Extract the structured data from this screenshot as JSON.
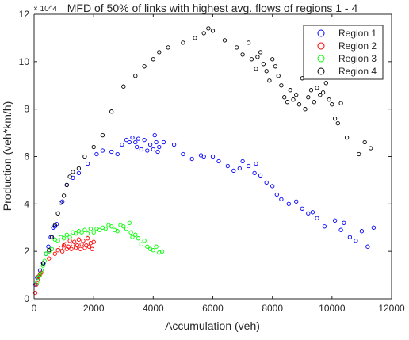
{
  "chart_data": {
    "type": "scatter",
    "title": "MFD of 50% of links with highest avg. flows of regions 1 - 4",
    "xlabel": "Accumulation (veh)",
    "ylabel": "Production (veh*km/h)",
    "y_exponent_label": "× 10^4",
    "xlim": [
      0,
      12000
    ],
    "ylim": [
      0,
      120000
    ],
    "x_ticks": [
      0,
      2000,
      4000,
      6000,
      8000,
      10000,
      12000
    ],
    "x_tick_labels": [
      "0",
      "2000",
      "4000",
      "6000",
      "8000",
      "10000",
      "12000"
    ],
    "y_ticks": [
      0,
      20000,
      40000,
      60000,
      80000,
      100000,
      120000
    ],
    "y_tick_labels": [
      "0",
      "2",
      "4",
      "6",
      "8",
      "10",
      "12"
    ],
    "grid": false,
    "legend_position": "top-right",
    "series": [
      {
        "name": "Region 1",
        "color": "#0000ff",
        "points": [
          [
            40,
            6000
          ],
          [
            100,
            9000
          ],
          [
            200,
            12000
          ],
          [
            320,
            15000
          ],
          [
            400,
            19000
          ],
          [
            480,
            22000
          ],
          [
            560,
            26000
          ],
          [
            640,
            30000
          ],
          [
            700,
            30500
          ],
          [
            760,
            31500
          ],
          [
            950,
            41000
          ],
          [
            1100,
            48000
          ],
          [
            1300,
            51000
          ],
          [
            1500,
            53000
          ],
          [
            1800,
            57000
          ],
          [
            2100,
            61000
          ],
          [
            2300,
            62500
          ],
          [
            2600,
            62000
          ],
          [
            2800,
            61000
          ],
          [
            2950,
            65000
          ],
          [
            3100,
            67000
          ],
          [
            3200,
            66000
          ],
          [
            3300,
            68000
          ],
          [
            3400,
            66000
          ],
          [
            3450,
            64000
          ],
          [
            3500,
            67500
          ],
          [
            3600,
            63000
          ],
          [
            3700,
            67000
          ],
          [
            3800,
            62500
          ],
          [
            3900,
            65000
          ],
          [
            4000,
            63000
          ],
          [
            4050,
            69000
          ],
          [
            4100,
            66000
          ],
          [
            4150,
            62000
          ],
          [
            4200,
            64000
          ],
          [
            4350,
            66000
          ],
          [
            4700,
            65000
          ],
          [
            5000,
            61000
          ],
          [
            5300,
            59000
          ],
          [
            5600,
            60500
          ],
          [
            5700,
            60000
          ],
          [
            6000,
            60000
          ],
          [
            6200,
            58000
          ],
          [
            6500,
            56000
          ],
          [
            6700,
            54000
          ],
          [
            6900,
            55000
          ],
          [
            7000,
            58000
          ],
          [
            7200,
            56000
          ],
          [
            7400,
            53000
          ],
          [
            7450,
            57000
          ],
          [
            7600,
            52000
          ],
          [
            7800,
            49000
          ],
          [
            8000,
            47500
          ],
          [
            8150,
            44000
          ],
          [
            8300,
            42000
          ],
          [
            8550,
            40000
          ],
          [
            8800,
            41000
          ],
          [
            9000,
            38000
          ],
          [
            9200,
            36000
          ],
          [
            9350,
            36500
          ],
          [
            9500,
            34000
          ],
          [
            9750,
            30500
          ],
          [
            10100,
            33000
          ],
          [
            10300,
            29000
          ],
          [
            10400,
            32000
          ],
          [
            10600,
            26000
          ],
          [
            10800,
            24500
          ],
          [
            11000,
            28500
          ],
          [
            11200,
            22000
          ],
          [
            11400,
            30000
          ]
        ]
      },
      {
        "name": "Region 2",
        "color": "#ff0000",
        "points": [
          [
            40,
            2500
          ],
          [
            80,
            6000
          ],
          [
            120,
            8000
          ],
          [
            160,
            9500
          ],
          [
            200,
            10500
          ],
          [
            240,
            11000
          ],
          [
            500,
            17000
          ],
          [
            700,
            19000
          ],
          [
            800,
            20500
          ],
          [
            900,
            21500
          ],
          [
            950,
            20000
          ],
          [
            1000,
            22500
          ],
          [
            1050,
            23000
          ],
          [
            1100,
            21000
          ],
          [
            1150,
            22000
          ],
          [
            1200,
            24500
          ],
          [
            1250,
            21000
          ],
          [
            1300,
            23000
          ],
          [
            1350,
            24000
          ],
          [
            1400,
            21500
          ],
          [
            1450,
            22500
          ],
          [
            1500,
            25000
          ],
          [
            1550,
            21000
          ],
          [
            1600,
            23000
          ],
          [
            1650,
            24500
          ],
          [
            1700,
            21500
          ],
          [
            1750,
            22500
          ],
          [
            1800,
            25500
          ],
          [
            1850,
            22000
          ],
          [
            1900,
            23500
          ],
          [
            1950,
            21000
          ],
          [
            2000,
            24000
          ]
        ]
      },
      {
        "name": "Region 3",
        "color": "#00ff00",
        "points": [
          [
            100,
            7000
          ],
          [
            150,
            9000
          ],
          [
            200,
            10000
          ],
          [
            250,
            12000
          ],
          [
            300,
            14000
          ],
          [
            350,
            16000
          ],
          [
            400,
            19000
          ],
          [
            500,
            20000
          ],
          [
            600,
            21000
          ],
          [
            700,
            25000
          ],
          [
            800,
            24500
          ],
          [
            900,
            26000
          ],
          [
            1000,
            25500
          ],
          [
            1100,
            27000
          ],
          [
            1200,
            26000
          ],
          [
            1300,
            28000
          ],
          [
            1400,
            27500
          ],
          [
            1500,
            28500
          ],
          [
            1600,
            28000
          ],
          [
            1700,
            29000
          ],
          [
            1800,
            27500
          ],
          [
            1900,
            29500
          ],
          [
            2000,
            28000
          ],
          [
            2100,
            29500
          ],
          [
            2200,
            29000
          ],
          [
            2300,
            30000
          ],
          [
            2400,
            29500
          ],
          [
            2500,
            31000
          ],
          [
            2600,
            30500
          ],
          [
            2700,
            29000
          ],
          [
            2800,
            28500
          ],
          [
            2900,
            31000
          ],
          [
            3000,
            30500
          ],
          [
            3100,
            29500
          ],
          [
            3200,
            32000
          ],
          [
            3250,
            28000
          ],
          [
            3300,
            26000
          ],
          [
            3400,
            27000
          ],
          [
            3500,
            25500
          ],
          [
            3600,
            23000
          ],
          [
            3700,
            24500
          ],
          [
            3800,
            22000
          ],
          [
            3900,
            21000
          ],
          [
            4000,
            20500
          ],
          [
            4100,
            22000
          ],
          [
            4200,
            19500
          ],
          [
            4300,
            20000
          ]
        ]
      },
      {
        "name": "Region 4",
        "color": "#000000",
        "points": [
          [
            300,
            15000
          ],
          [
            500,
            20500
          ],
          [
            600,
            26000
          ],
          [
            700,
            31000
          ],
          [
            800,
            36000
          ],
          [
            900,
            40500
          ],
          [
            1000,
            43500
          ],
          [
            1100,
            48000
          ],
          [
            1200,
            51500
          ],
          [
            1300,
            53500
          ],
          [
            1500,
            55000
          ],
          [
            1700,
            60000
          ],
          [
            2000,
            64000
          ],
          [
            2300,
            69000
          ],
          [
            2600,
            79000
          ],
          [
            3000,
            89500
          ],
          [
            3400,
            94000
          ],
          [
            3700,
            98000
          ],
          [
            4000,
            101000
          ],
          [
            4200,
            104000
          ],
          [
            4500,
            106000
          ],
          [
            5000,
            108000
          ],
          [
            5400,
            110000
          ],
          [
            5700,
            112000
          ],
          [
            5850,
            114000
          ],
          [
            6000,
            113000
          ],
          [
            6400,
            109000
          ],
          [
            6800,
            106000
          ],
          [
            7000,
            103000
          ],
          [
            7200,
            108000
          ],
          [
            7300,
            101000
          ],
          [
            7450,
            97000
          ],
          [
            7500,
            102000
          ],
          [
            7600,
            104000
          ],
          [
            7700,
            99000
          ],
          [
            7800,
            96000
          ],
          [
            7900,
            92000
          ],
          [
            8000,
            101000
          ],
          [
            8100,
            98000
          ],
          [
            8200,
            94000
          ],
          [
            8300,
            90000
          ],
          [
            8400,
            85000
          ],
          [
            8500,
            83000
          ],
          [
            8600,
            88000
          ],
          [
            8700,
            84000
          ],
          [
            8800,
            86000
          ],
          [
            8900,
            82000
          ],
          [
            9000,
            93000
          ],
          [
            9100,
            80000
          ],
          [
            9200,
            85000
          ],
          [
            9300,
            88000
          ],
          [
            9400,
            83000
          ],
          [
            9500,
            89000
          ],
          [
            9600,
            86000
          ],
          [
            9700,
            87000
          ],
          [
            9800,
            91000
          ],
          [
            9900,
            84000
          ],
          [
            10000,
            82000
          ],
          [
            10100,
            76000
          ],
          [
            10200,
            74000
          ],
          [
            10300,
            82500
          ],
          [
            10500,
            68000
          ],
          [
            10900,
            61000
          ],
          [
            11100,
            66000
          ],
          [
            11300,
            63500
          ]
        ]
      }
    ]
  }
}
